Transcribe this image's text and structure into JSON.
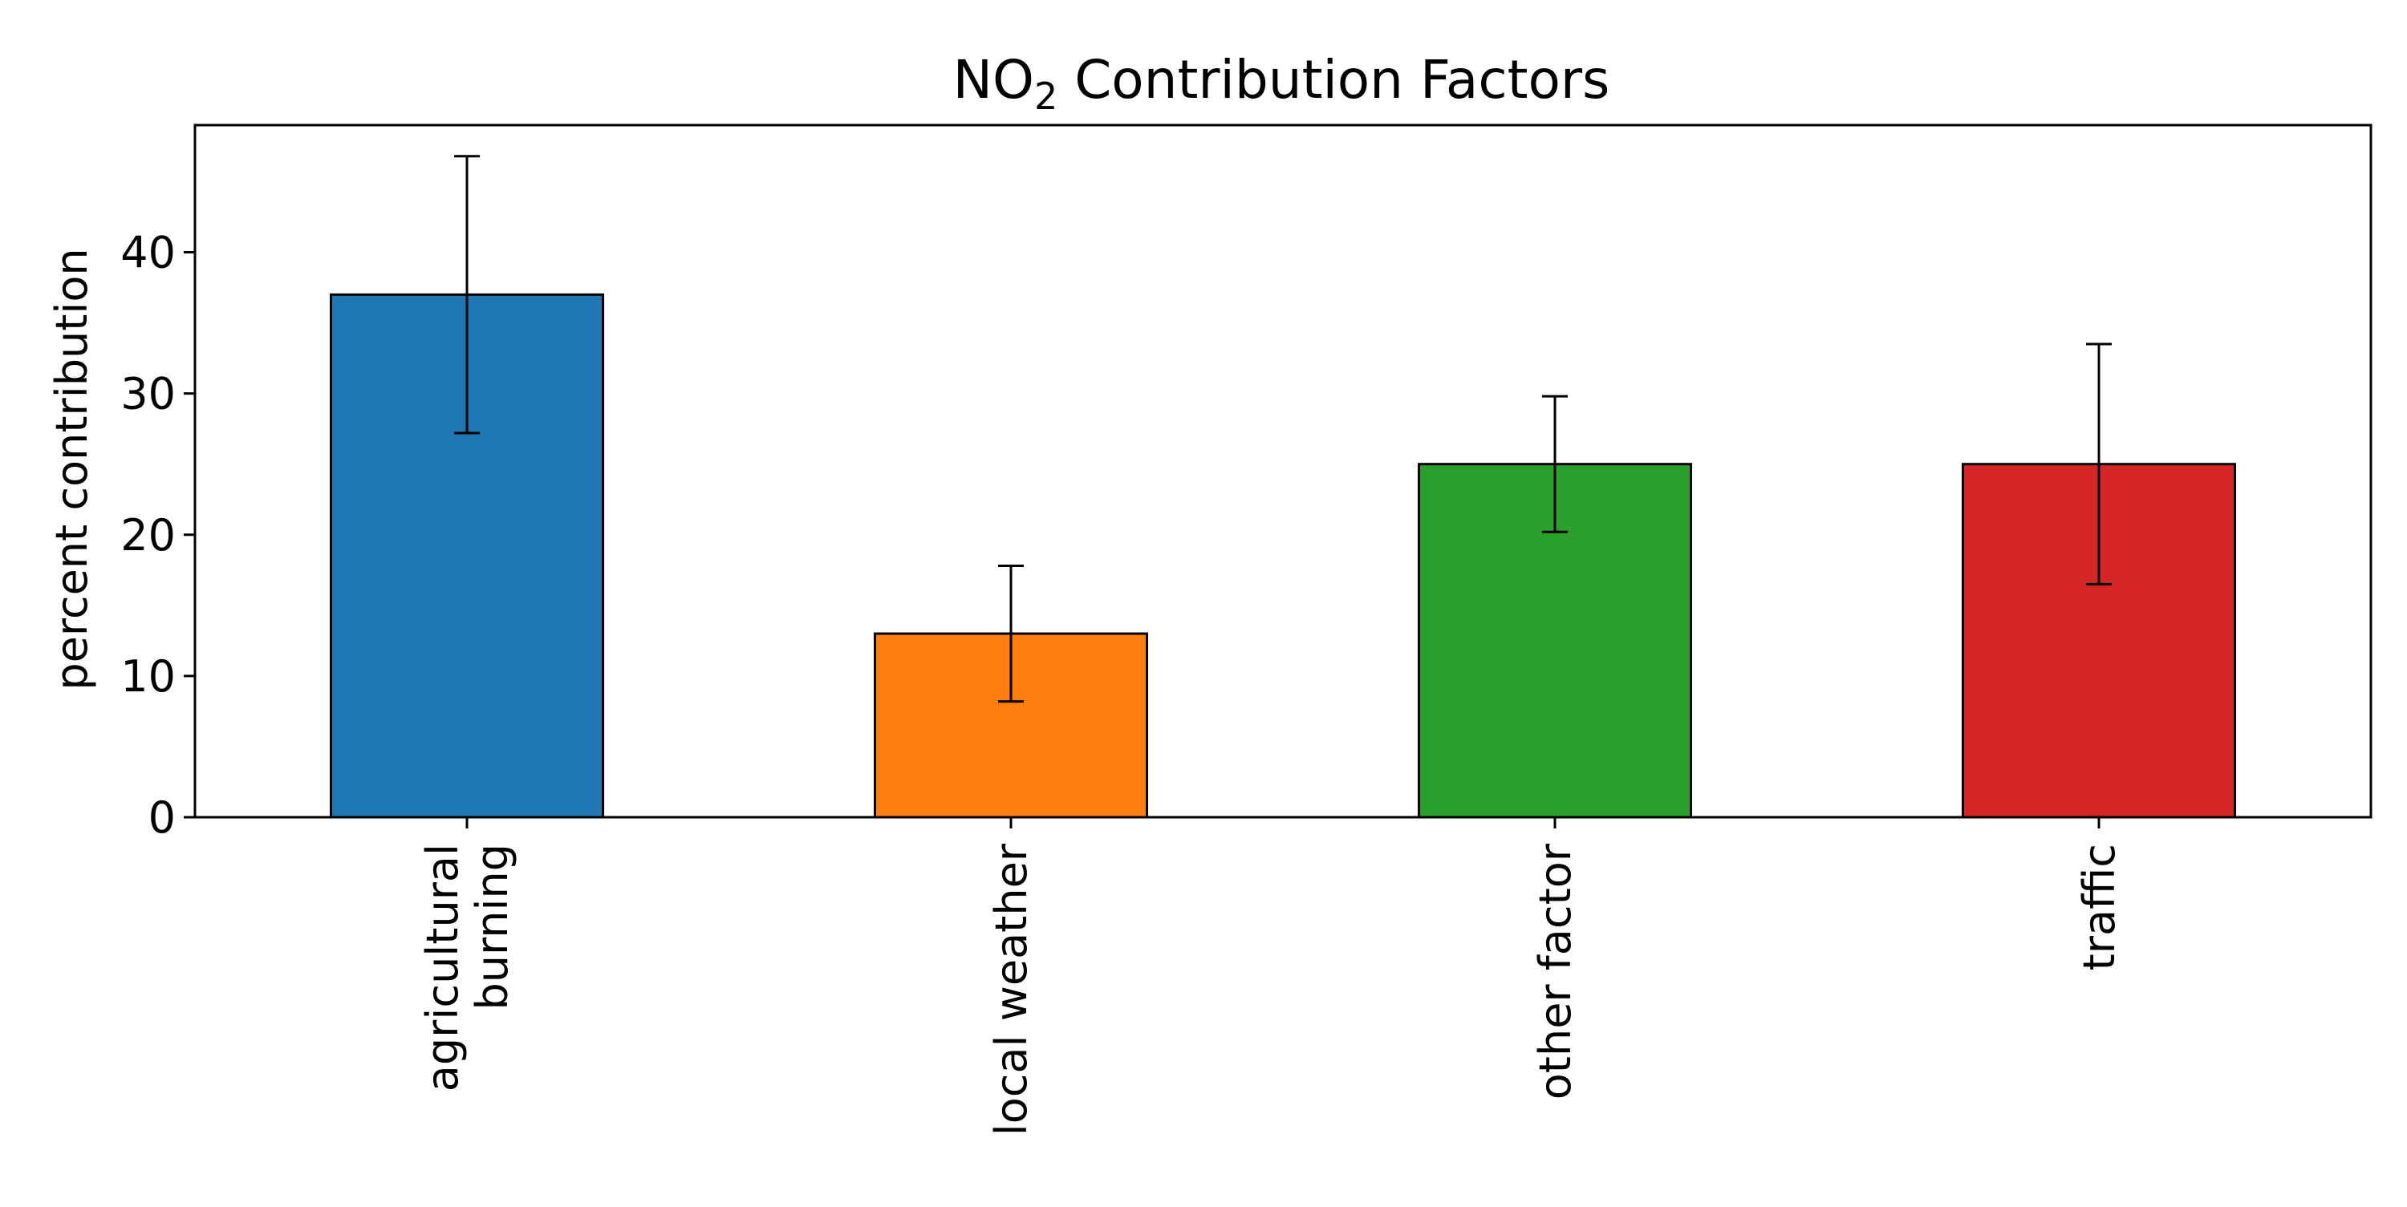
{
  "chart_data": {
    "type": "bar",
    "title": {
      "main": "NO",
      "subscript": "2",
      "rest": " Contribution Factors"
    },
    "xlabel": "",
    "ylabel": "percent contribution",
    "ylim": [
      0,
      49
    ],
    "yticks": [
      0,
      10,
      20,
      30,
      40
    ],
    "grid": false,
    "legend": "none",
    "categories": [
      [
        "agricultural",
        "burning"
      ],
      [
        "local weather"
      ],
      [
        "other factor"
      ],
      [
        "traffic"
      ]
    ],
    "values": [
      37,
      13,
      25,
      25
    ],
    "errors": [
      {
        "low": 27.2,
        "high": 46.8
      },
      {
        "low": 8.2,
        "high": 17.8
      },
      {
        "low": 20.2,
        "high": 29.8
      },
      {
        "low": 16.5,
        "high": 33.5
      }
    ],
    "colors": [
      "#1f77b4",
      "#ff7f0e",
      "#2ca02c",
      "#d62728"
    ]
  }
}
